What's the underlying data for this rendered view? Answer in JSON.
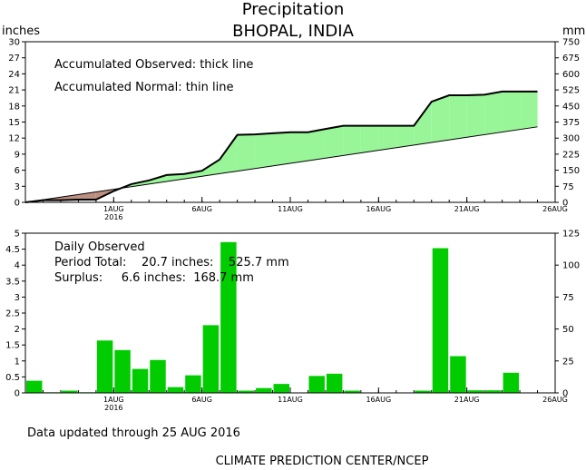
{
  "title": "Precipitation",
  "subtitle": "BHOPAL, INDIA",
  "footer_left": "Data updated through 25 AUG 2016",
  "footer_center": "CLIMATE PREDICTION CENTER/NCEP",
  "top_panel": {
    "left_unit": "inches",
    "right_unit": "mm",
    "legend_line1": "Accumulated Observed: thick line",
    "legend_line2": "Accumulated Normal: thin line"
  },
  "bottom_panel": {
    "label_line1": "Daily Observed",
    "label_line2": "Period Total:    20.7 inches:    525.7 mm",
    "label_line3": "Surplus:     6.6 inches:  168.7 mm"
  },
  "colors": {
    "surplus_fill": "#98f598",
    "deficit_fill": "#bc8f80",
    "bar_fill": "#00cc00",
    "axis": "#000000"
  },
  "chart_data": [
    {
      "type": "area",
      "title": "Precipitation",
      "ylabel": "inches",
      "y2label": "mm",
      "xlim": [
        -4,
        26
      ],
      "ylim": [
        0,
        30
      ],
      "y_ticks": [
        0,
        3,
        6,
        9,
        12,
        15,
        18,
        21,
        24,
        27,
        30
      ],
      "y2_ticks": [
        0,
        75,
        150,
        225,
        300,
        375,
        450,
        525,
        600,
        675,
        750
      ],
      "x_ticks": [
        1,
        6,
        11,
        16,
        21,
        26
      ],
      "x_tick_labels": [
        "1AUG",
        "6AUG",
        "11AUG",
        "16AUG",
        "21AUG",
        "26AUG"
      ],
      "x_tick_sublabel": "2016",
      "series": [
        {
          "name": "Accumulated Observed",
          "x": [
            -4,
            -3,
            -2,
            -1,
            0,
            1,
            2,
            3,
            4,
            5,
            6,
            7,
            8,
            9,
            10,
            11,
            12,
            13,
            14,
            15,
            16,
            17,
            18,
            19,
            20,
            21,
            22,
            23,
            24,
            25
          ],
          "values": [
            0,
            0.4,
            0.4,
            0.5,
            0.5,
            2.1,
            3.4,
            4.1,
            5.1,
            5.3,
            5.9,
            8.0,
            12.6,
            12.7,
            12.9,
            13.1,
            13.1,
            13.7,
            14.3,
            14.3,
            14.3,
            14.3,
            14.3,
            18.8,
            20.0,
            20.0,
            20.1,
            20.7,
            20.7,
            20.7
          ]
        },
        {
          "name": "Accumulated Normal",
          "x": [
            -4,
            25
          ],
          "values": [
            0,
            14.1
          ]
        }
      ],
      "grid": false
    },
    {
      "type": "bar",
      "title": "Daily Observed",
      "xlim": [
        -4,
        26
      ],
      "ylim": [
        0,
        5
      ],
      "y_ticks": [
        0,
        0.5,
        1,
        1.5,
        2,
        2.5,
        3,
        3.5,
        4,
        4.5,
        5
      ],
      "y2_ticks": [
        0,
        25,
        50,
        75,
        100,
        125
      ],
      "x_ticks": [
        1,
        6,
        11,
        16,
        21,
        26
      ],
      "x_tick_labels": [
        "1AUG",
        "6AUG",
        "11AUG",
        "16AUG",
        "21AUG",
        "26AUG"
      ],
      "x_tick_sublabel": "2016",
      "x": [
        -4,
        -3,
        -2,
        -1,
        0,
        1,
        2,
        3,
        4,
        5,
        6,
        7,
        8,
        9,
        10,
        11,
        12,
        13,
        14,
        15,
        16,
        17,
        18,
        19,
        20,
        21,
        22,
        23,
        24,
        25
      ],
      "values": [
        0.38,
        0.02,
        0.07,
        0.02,
        1.64,
        1.34,
        0.75,
        1.03,
        0.18,
        0.55,
        2.12,
        4.72,
        0.07,
        0.15,
        0.28,
        0,
        0.53,
        0.6,
        0.07,
        0,
        0,
        0,
        0.07,
        4.53,
        1.15,
        0.08,
        0.08,
        0.63,
        0,
        0
      ],
      "grid": false
    }
  ]
}
